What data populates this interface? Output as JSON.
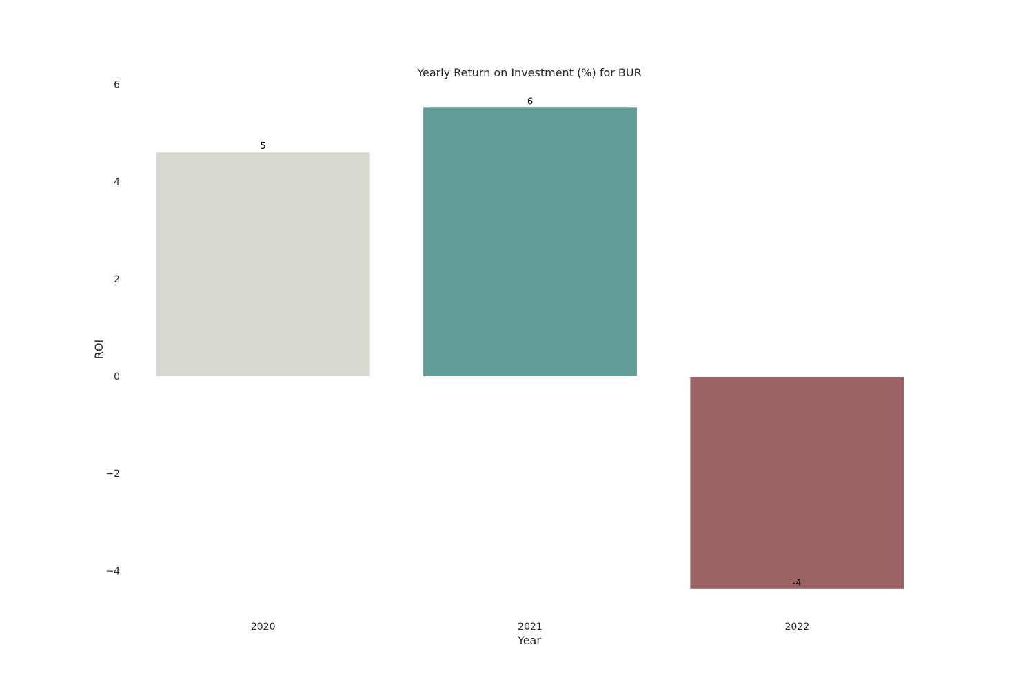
{
  "chart_data": {
    "type": "bar",
    "title": "Yearly Return on Investment (%) for BUR",
    "xlabel": "Year",
    "ylabel": "ROI",
    "categories": [
      "2020",
      "2021",
      "2022"
    ],
    "values": [
      4.6,
      5.52,
      -4.36
    ],
    "data_labels": [
      "5",
      "6",
      "-4"
    ],
    "bar_colors": [
      "#d6d9d0",
      "#629d97",
      "#9c6366"
    ],
    "ylim": [
      -4.9,
      6.4
    ],
    "yticks": [
      6,
      4,
      2,
      0,
      -2,
      -4
    ],
    "ytick_labels": [
      "6",
      "4",
      "2",
      "0",
      "−2",
      "−4"
    ],
    "grid": false,
    "legend": "none"
  }
}
